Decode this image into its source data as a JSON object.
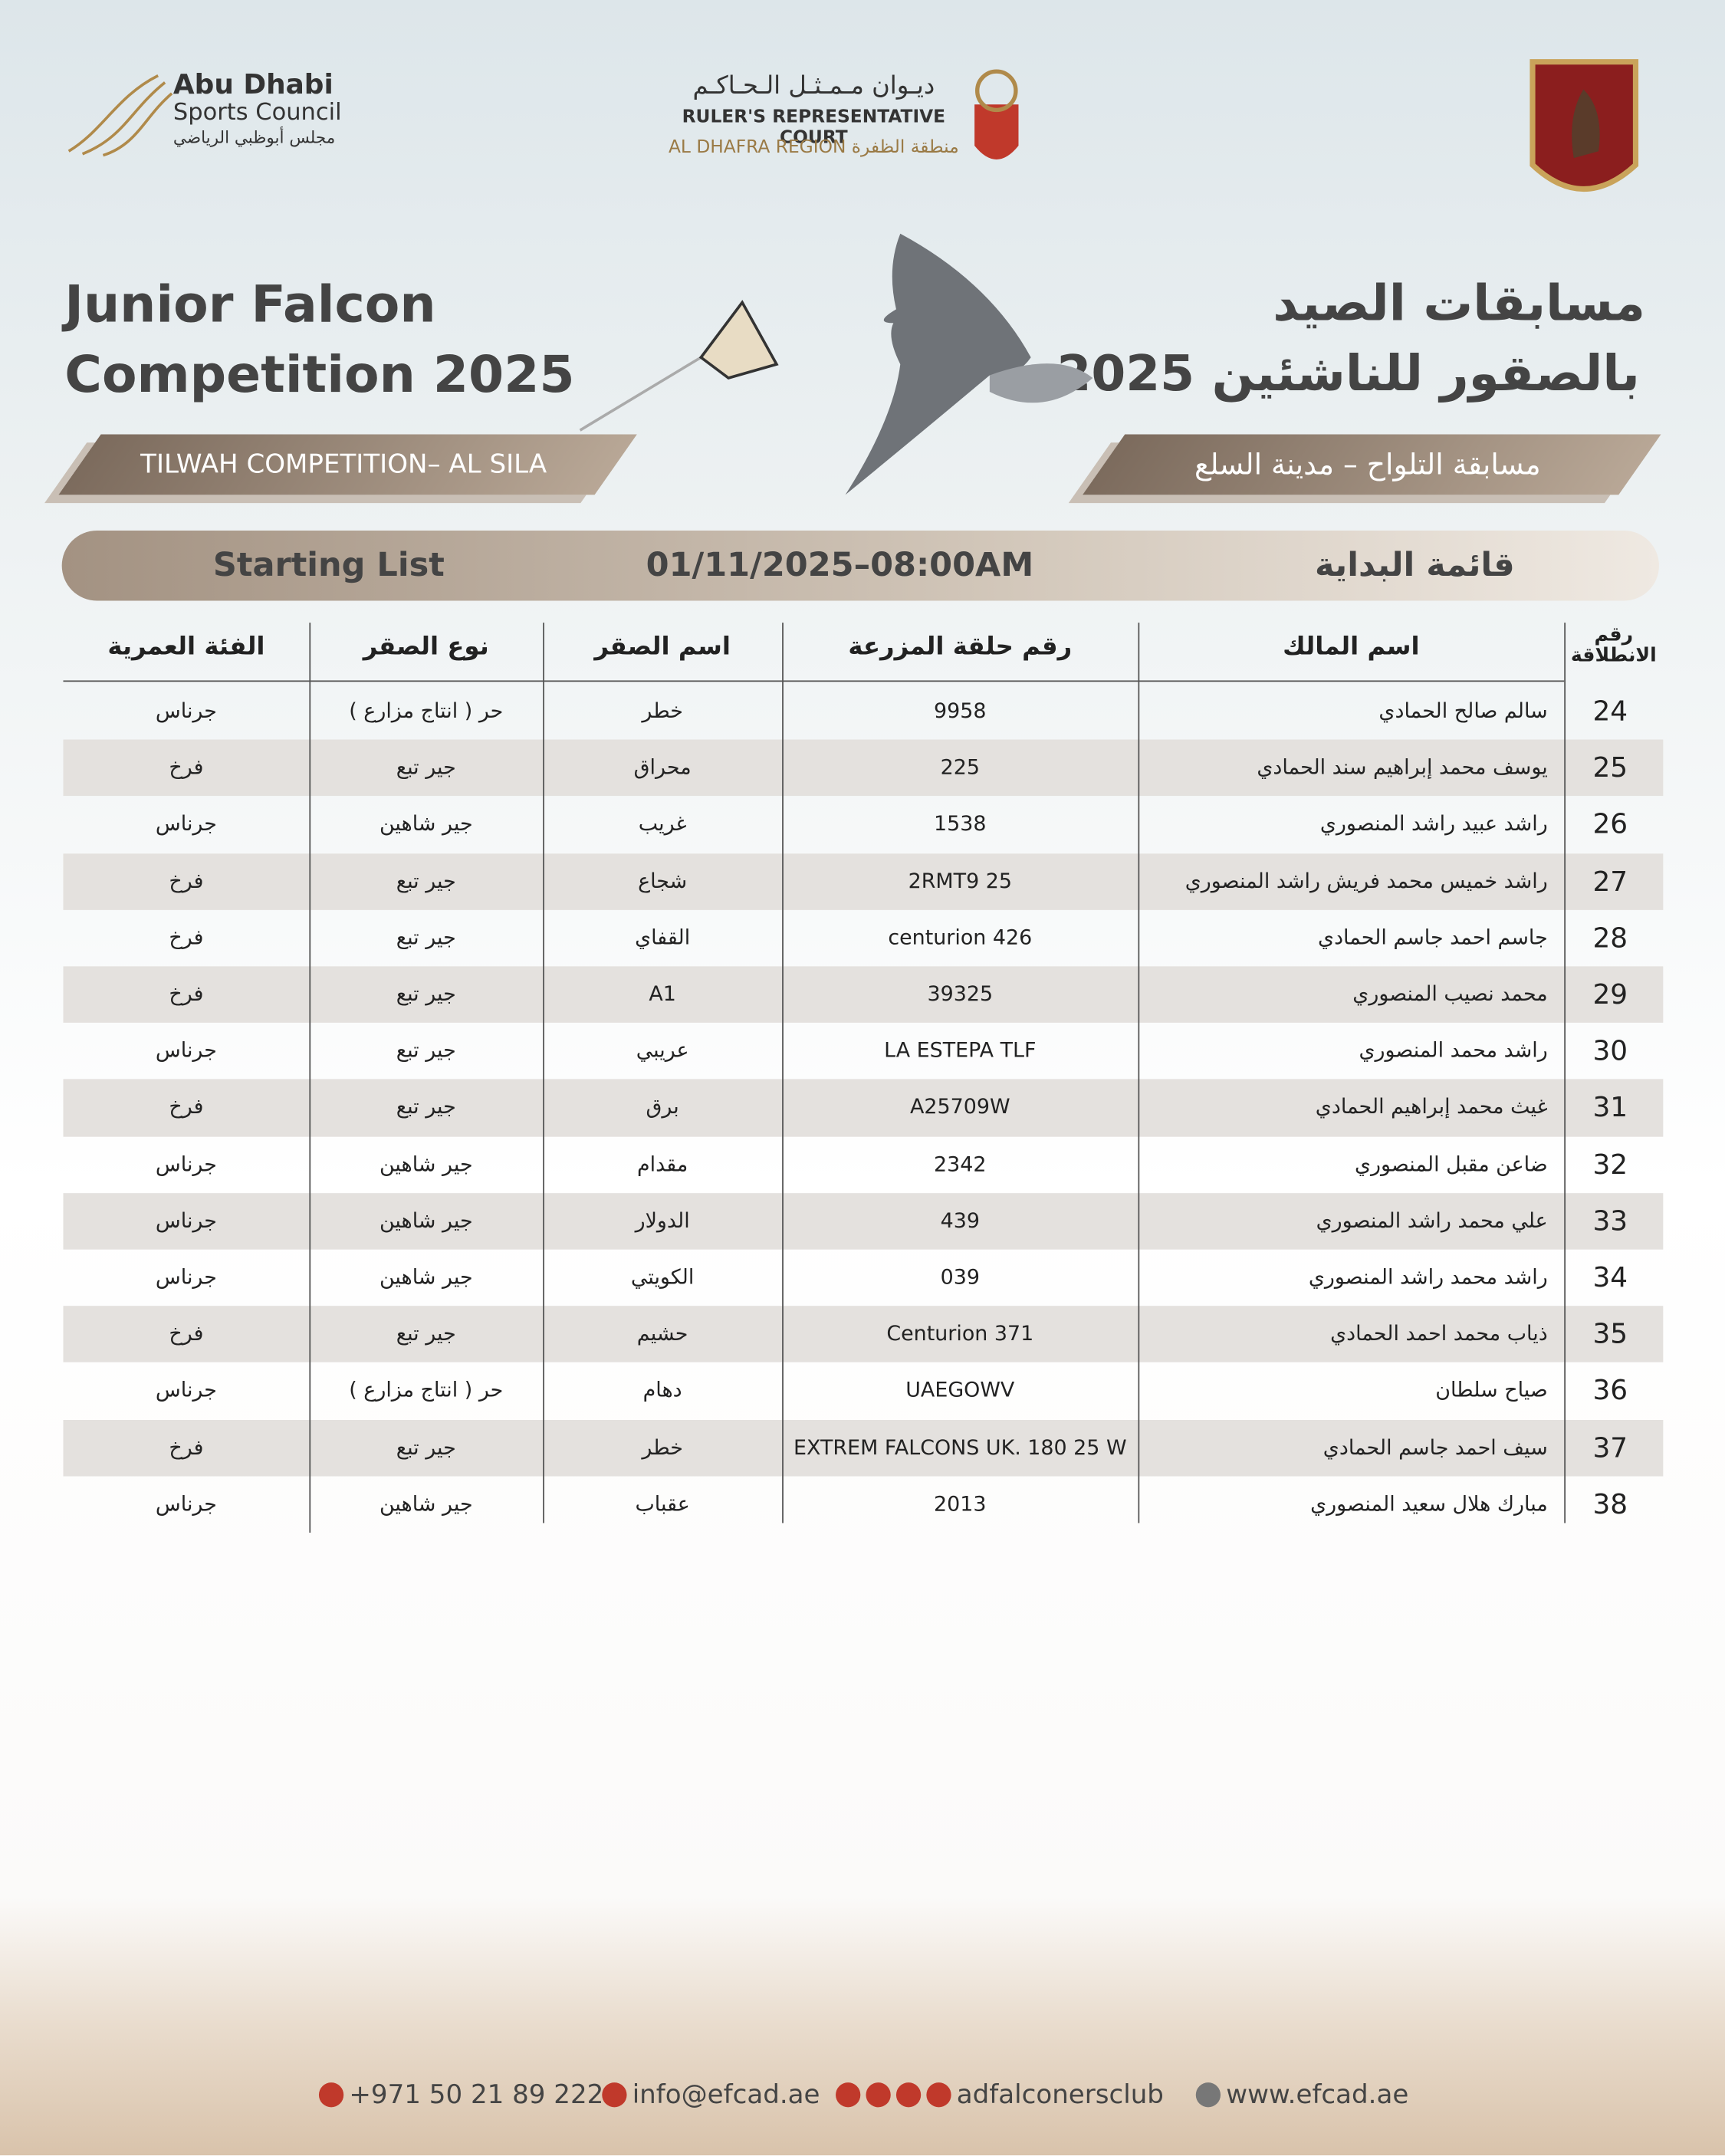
{
  "header": {
    "council": {
      "name_line1": "Abu Dhabi",
      "name_line2": "Sports Council",
      "name_ar": "مجلس أبوظبي الرياضي"
    },
    "court": {
      "name_ar": "ديـوان مـمـثـل الـحـاكـم",
      "name_en": "RULER'S REPRESENTATIVE COURT",
      "region": "AL DHAFRA REGION منطقة الظفرة"
    }
  },
  "title": {
    "en_line1": "Junior Falcon",
    "en_line2": "Competition 2025",
    "ar_line1": "مسابقات الصيد",
    "ar_line2": "بالصقور للناشئين 2025"
  },
  "banner": {
    "en": "TILWAH COMPETITION– AL SILA",
    "ar": "مسابقة التلواح – مدينة السلع"
  },
  "list_bar": {
    "en": "Starting List",
    "date": "01/11/2025–08:00AM",
    "ar": "قائمة البداية"
  },
  "table": {
    "headers": [
      "رقم الانطلاقة",
      "اسم المالك",
      "رقم حلقة المزرعة",
      "اسم الصقر",
      "نوع الصقر",
      "الفئة العمرية"
    ],
    "rows": [
      [
        24,
        "سالم صالح الحمادي",
        "9958",
        "خطر",
        "حر ( انتاج مزارع )",
        "جرناس"
      ],
      [
        25,
        "يوسف محمد إبراهيم سند الحمادي",
        "225",
        "محراق",
        "جير تبع",
        "فرخ"
      ],
      [
        26,
        "راشد عبيد راشد المنصوري",
        "1538",
        "غريب",
        "جير شاهين",
        "جرناس"
      ],
      [
        27,
        "راشد خميس محمد فريش راشد المنصوري",
        "2RMT9 25",
        "شجاع",
        "جير تبع",
        "فرخ"
      ],
      [
        28,
        "جاسم احمد جاسم الحمادي",
        "centurion 426",
        "القفاي",
        "جير تبع",
        "فرخ"
      ],
      [
        29,
        "محمد نصيب المنصوري",
        "39325",
        "A1",
        "جير تبع",
        "فرخ"
      ],
      [
        30,
        "راشد محمد المنصوري",
        "LA ESTEPA TLF",
        "عريبي",
        "جير تبع",
        "جرناس"
      ],
      [
        31,
        "غيث محمد إبراهيم الحمادي",
        "A25709W",
        "برق",
        "جير تبع",
        "فرخ"
      ],
      [
        32,
        "ضاعن مقبل المنصوري",
        "2342",
        "مقدام",
        "جير شاهين",
        "جرناس"
      ],
      [
        33,
        "علي محمد راشد المنصوري",
        "439",
        "الدولار",
        "جير شاهين",
        "جرناس"
      ],
      [
        34,
        "راشد محمد راشد المنصوري",
        "039",
        "الكويتي",
        "جير شاهين",
        "جرناس"
      ],
      [
        35,
        "ذياب محمد احمد الحمادي",
        "Centurion 371",
        "حشيم",
        "جير تبع",
        "فرخ"
      ],
      [
        36,
        "صياح سلطان",
        "UAEGOWV",
        "دهام",
        "حر ( انتاج مزارع )",
        "جرناس"
      ],
      [
        37,
        "سيف احمد جاسم الحمادي",
        "EXTREM FALCONS UK. 180 25 W",
        "خطر",
        "جير تبع",
        "فرخ"
      ],
      [
        38,
        "مبارك هلال سعيد المنصوري",
        "2013",
        "عقباب",
        "جير شاهين",
        "جرناس"
      ]
    ]
  },
  "footer": {
    "phone": "+971 50 21 89 222",
    "email": "info@efcad.ae",
    "social": "adfalconersclub",
    "website": "www.efcad.ae"
  }
}
